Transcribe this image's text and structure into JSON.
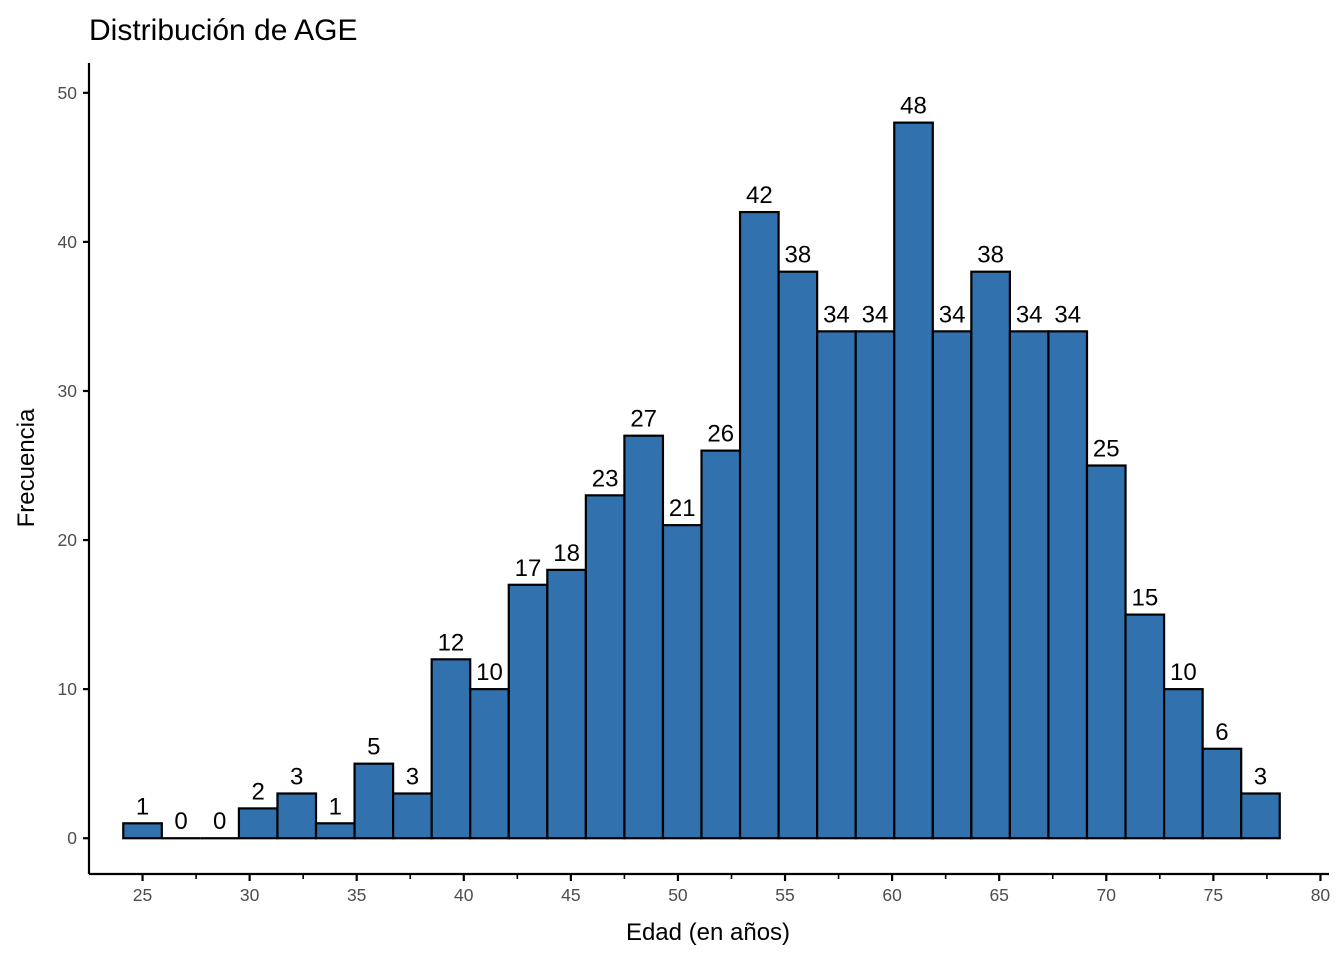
{
  "chart_data": {
    "type": "bar",
    "title": "Distribución de AGE",
    "xlabel": "Edad (en años)",
    "ylabel": "Frecuencia",
    "bins": [
      {
        "start": 24.1,
        "end": 25.9,
        "value": 1
      },
      {
        "start": 25.9,
        "end": 27.7,
        "value": 0
      },
      {
        "start": 27.7,
        "end": 29.5,
        "value": 0
      },
      {
        "start": 29.5,
        "end": 31.3,
        "value": 2
      },
      {
        "start": 31.3,
        "end": 33.1,
        "value": 3
      },
      {
        "start": 33.1,
        "end": 34.9,
        "value": 1
      },
      {
        "start": 34.9,
        "end": 36.7,
        "value": 5
      },
      {
        "start": 36.7,
        "end": 38.5,
        "value": 3
      },
      {
        "start": 38.5,
        "end": 40.3,
        "value": 12
      },
      {
        "start": 40.3,
        "end": 42.1,
        "value": 10
      },
      {
        "start": 42.1,
        "end": 43.9,
        "value": 17
      },
      {
        "start": 43.9,
        "end": 45.7,
        "value": 18
      },
      {
        "start": 45.7,
        "end": 47.5,
        "value": 23
      },
      {
        "start": 47.5,
        "end": 49.3,
        "value": 27
      },
      {
        "start": 49.3,
        "end": 51.1,
        "value": 21
      },
      {
        "start": 51.1,
        "end": 52.9,
        "value": 26
      },
      {
        "start": 52.9,
        "end": 54.7,
        "value": 42
      },
      {
        "start": 54.7,
        "end": 56.5,
        "value": 38
      },
      {
        "start": 56.5,
        "end": 58.3,
        "value": 34
      },
      {
        "start": 58.3,
        "end": 60.1,
        "value": 34
      },
      {
        "start": 60.1,
        "end": 61.9,
        "value": 48
      },
      {
        "start": 61.9,
        "end": 63.7,
        "value": 34
      },
      {
        "start": 63.7,
        "end": 65.5,
        "value": 38
      },
      {
        "start": 65.5,
        "end": 67.3,
        "value": 34
      },
      {
        "start": 67.3,
        "end": 69.1,
        "value": 34
      },
      {
        "start": 69.1,
        "end": 70.9,
        "value": 25
      },
      {
        "start": 70.9,
        "end": 72.7,
        "value": 15
      },
      {
        "start": 72.7,
        "end": 74.5,
        "value": 10
      },
      {
        "start": 74.5,
        "end": 76.3,
        "value": 6
      },
      {
        "start": 76.3,
        "end": 78.1,
        "value": 3
      }
    ],
    "xlim": [
      22.5,
      80.4
    ],
    "ylim": [
      -2.4,
      52
    ],
    "x_ticks": [
      25,
      30,
      35,
      40,
      45,
      50,
      55,
      60,
      65,
      70,
      75,
      80
    ],
    "x_minor_ticks": [
      27.5,
      32.5,
      37.5,
      42.5,
      47.5,
      52.5,
      57.5,
      62.5,
      67.5,
      72.5,
      77.5
    ],
    "y_ticks": [
      0,
      10,
      20,
      30,
      40,
      50
    ],
    "grid": false,
    "legend": "none",
    "colors": {
      "bar_fill": "#3171ad",
      "bar_outline": "#000000",
      "axis": "#000000",
      "tick_label": "#4d4d4d"
    }
  }
}
